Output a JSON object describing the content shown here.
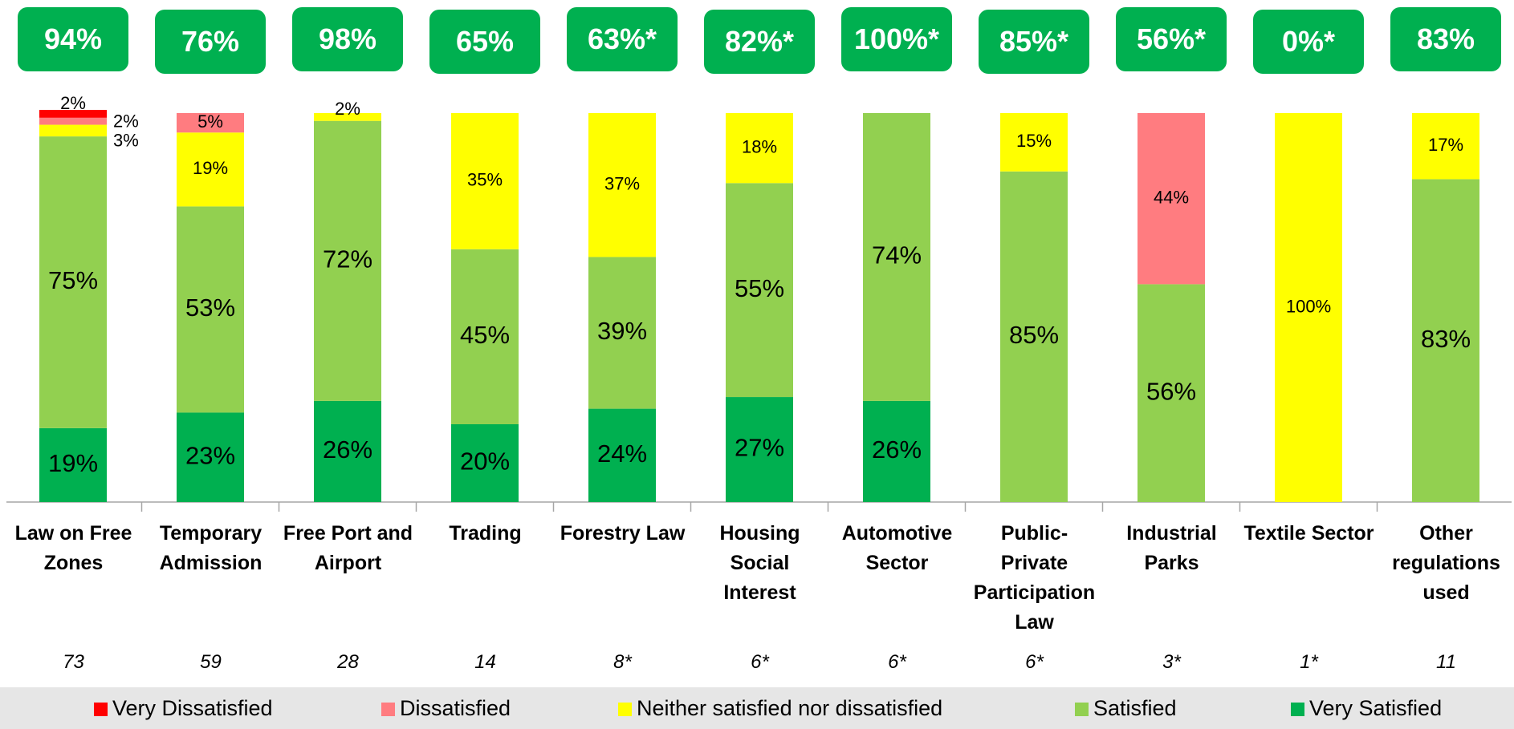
{
  "chart_data": {
    "type": "stacked_bar",
    "categories": [
      "Law on Free Zones",
      "Temporary Admission",
      "Free Port and Airport",
      "Trading",
      "Forestry Law",
      "Housing Social Interest",
      "Automotive Sector",
      "Public-Private Participation Law",
      "Industrial Parks",
      "Textile Sector",
      "Other regulations used"
    ],
    "badges": [
      "94%",
      "76%",
      "98%",
      "65%",
      "63%*",
      "82%*",
      "100%*",
      "85%*",
      "56%*",
      "0%*",
      "83%"
    ],
    "sample_sizes": [
      "73",
      "59",
      "28",
      "14",
      "8*",
      "6*",
      "6*",
      "6*",
      "3*",
      "1*",
      "11"
    ],
    "ylim": [
      0,
      100
    ],
    "series": [
      {
        "name": "Very Satisfied",
        "color": "#00b050",
        "values": [
          19,
          23,
          26,
          20,
          24,
          27,
          26,
          null,
          null,
          null,
          null
        ],
        "value_labels": [
          "19%",
          "23%",
          "26%",
          "20%",
          "24%",
          "27%",
          "26%",
          null,
          null,
          null,
          null
        ]
      },
      {
        "name": "Satisfied",
        "color": "#92d050",
        "values": [
          75,
          53,
          72,
          45,
          39,
          55,
          74,
          85,
          56,
          null,
          83
        ],
        "value_labels": [
          "75%",
          "53%",
          "72%",
          "45%",
          "39%",
          "55%",
          "74%",
          "85%",
          "56%",
          null,
          "83%"
        ]
      },
      {
        "name": "Neither satisfied nor dissatisfied",
        "color": "#ffff00",
        "values": [
          3,
          19,
          2,
          35,
          37,
          18,
          null,
          15,
          null,
          100,
          17
        ],
        "value_labels": [
          "3%",
          "19%",
          "2%",
          "35%",
          "37%",
          "18%",
          null,
          "15%",
          null,
          "100%",
          "17%"
        ]
      },
      {
        "name": "Dissatisfied",
        "color": "#ff7c80",
        "values": [
          2,
          5,
          null,
          null,
          null,
          null,
          null,
          null,
          44,
          null,
          null
        ],
        "value_labels": [
          "2%",
          "5%",
          null,
          null,
          null,
          null,
          null,
          null,
          "44%",
          null,
          null
        ]
      },
      {
        "name": "Very Dissatisfied",
        "color": "#ff0000",
        "values": [
          2,
          null,
          null,
          null,
          null,
          null,
          null,
          null,
          null,
          null,
          null
        ],
        "value_labels": [
          "2%",
          null,
          null,
          null,
          null,
          null,
          null,
          null,
          null,
          null,
          null
        ]
      }
    ]
  }
}
